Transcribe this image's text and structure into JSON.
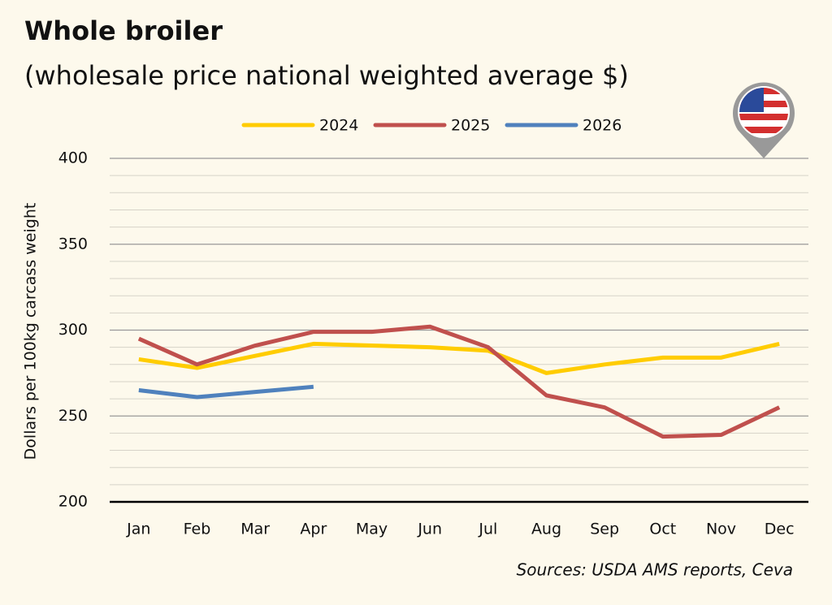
{
  "chart_data": {
    "type": "line",
    "title": "Whole broiler",
    "subtitle": "(wholesale price national weighted average $)",
    "y_label": "Dollars per 100kg carcass weight",
    "source": "Sources: USDA AMS reports, Ceva",
    "categories": [
      "Jan",
      "Feb",
      "Mar",
      "Apr",
      "May",
      "Jun",
      "Jul",
      "Aug",
      "Sep",
      "Oct",
      "Nov",
      "Dec"
    ],
    "series": [
      {
        "name": "2024",
        "color": "#ffcc00",
        "values": [
          283,
          278,
          285,
          292,
          291,
          290,
          288,
          275,
          280,
          284,
          284,
          292
        ]
      },
      {
        "name": "2025",
        "color": "#c0504d",
        "values": [
          295,
          280,
          291,
          299,
          299,
          302,
          290,
          262,
          255,
          238,
          239,
          255
        ]
      },
      {
        "name": "2026",
        "color": "#4f81bd",
        "values": [
          265,
          261,
          264,
          267,
          null,
          null,
          null,
          null,
          null,
          null,
          null,
          null
        ]
      }
    ],
    "ylim": [
      200,
      400
    ],
    "yticks": [
      200,
      250,
      300,
      350,
      400
    ],
    "minor_yticks": [
      210,
      220,
      230,
      240,
      260,
      270,
      280,
      290,
      310,
      320,
      330,
      340,
      360,
      370,
      380,
      390
    ],
    "grid": true,
    "legend": "top"
  }
}
